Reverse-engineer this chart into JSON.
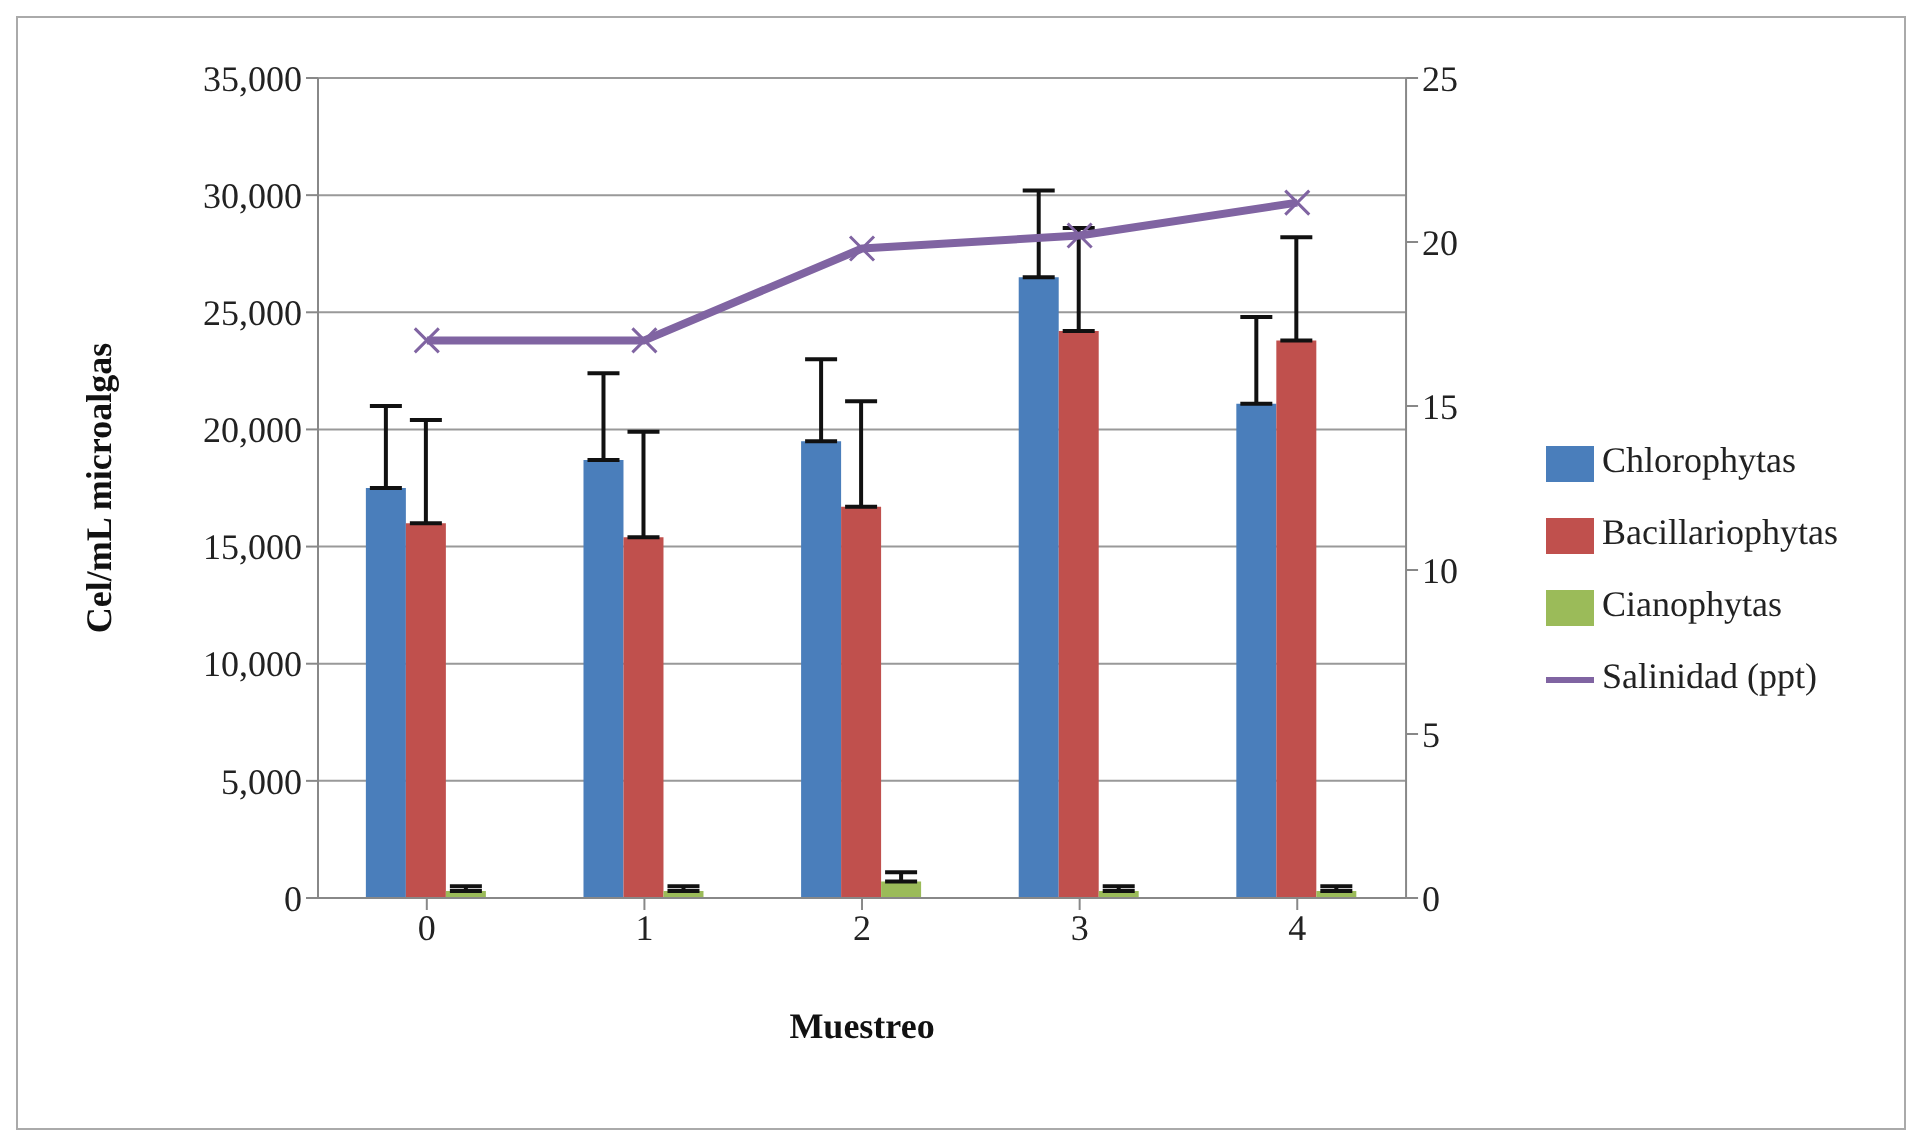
{
  "chart_data": {
    "type": "bar",
    "xlabel": "Muestreo",
    "ylabel": "Cel/mL microalgas",
    "categories": [
      "0",
      "1",
      "2",
      "3",
      "4"
    ],
    "series": [
      {
        "name": "Chlorophytas",
        "color": "#4a7ebb",
        "values": [
          17500,
          18700,
          19500,
          26500,
          21100
        ],
        "errors": [
          [
            17500,
            21000
          ],
          [
            18700,
            22400
          ],
          [
            19500,
            23000
          ],
          [
            26500,
            30200
          ],
          [
            21100,
            24800
          ]
        ]
      },
      {
        "name": "Bacillariophytas",
        "color": "#c0504d",
        "values": [
          16000,
          15400,
          16700,
          24200,
          23800
        ],
        "errors": [
          [
            16000,
            20400
          ],
          [
            15400,
            19900
          ],
          [
            16700,
            21200
          ],
          [
            24200,
            28600
          ],
          [
            23800,
            28200
          ]
        ]
      },
      {
        "name": "Cianophytas",
        "color": "#9bbb59",
        "values": [
          300,
          300,
          700,
          300,
          300
        ],
        "errors": [
          [
            300,
            500
          ],
          [
            300,
            500
          ],
          [
            700,
            1100
          ],
          [
            300,
            500
          ],
          [
            300,
            500
          ]
        ]
      },
      {
        "name": "Salinidad (ppt)",
        "type": "line",
        "axis": "y2",
        "color": "#8064a2",
        "marker": "cross",
        "values": [
          17,
          17,
          19.8,
          20.2,
          21.2
        ]
      }
    ],
    "ylim": [
      0,
      35000
    ],
    "yticks": [
      {
        "value": 0,
        "label": "0"
      },
      {
        "value": 5000,
        "label": "5,000"
      },
      {
        "value": 10000,
        "label": "10,000"
      },
      {
        "value": 15000,
        "label": "15,000"
      },
      {
        "value": 20000,
        "label": "20,000"
      },
      {
        "value": 25000,
        "label": "25,000"
      },
      {
        "value": 30000,
        "label": "30,000"
      },
      {
        "value": 35000,
        "label": "35,000"
      }
    ],
    "y2lim": [
      0,
      25
    ],
    "y2ticks": [
      0,
      5,
      10,
      15,
      20,
      25
    ],
    "grid": "y",
    "legend": "right"
  }
}
